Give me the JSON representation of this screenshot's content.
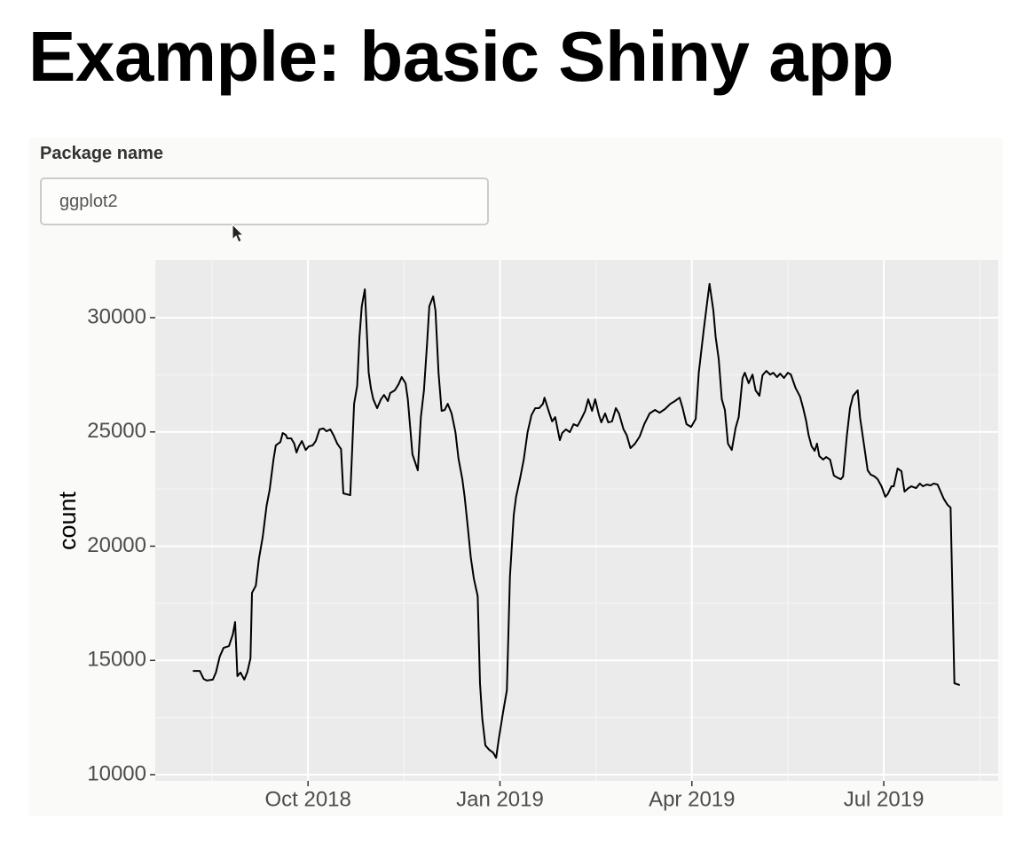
{
  "header": {
    "title": "Example: basic Shiny app"
  },
  "input": {
    "label": "Package name",
    "value": "ggplot2"
  },
  "chart_data": {
    "type": "line",
    "y_label": "count",
    "color": "#000000",
    "grid": true,
    "xlim": [
      2018.551,
      2019.649
    ],
    "ylim": [
      9728,
      32524
    ],
    "xticks": [
      {
        "value": 2018.75,
        "label": "Oct 2018"
      },
      {
        "value": 2019.0,
        "label": "Jan 2019"
      },
      {
        "value": 2019.25,
        "label": "Apr 2019"
      },
      {
        "value": 2019.5,
        "label": "Jul 2019"
      }
    ],
    "x_minor_ticks": [
      2018.625,
      2018.875,
      2019.125,
      2019.375,
      2019.625
    ],
    "yticks": [
      10000,
      15000,
      20000,
      25000,
      30000
    ],
    "y_minor_ticks": [
      12500,
      17500,
      22500,
      27500
    ],
    "x": [
      2018.6,
      2018.609,
      2018.614,
      2018.618,
      2018.626,
      2018.63,
      2018.635,
      2018.64,
      2018.647,
      2018.652,
      2018.655,
      2018.658,
      2018.662,
      2018.667,
      2018.671,
      2018.675,
      2018.677,
      2018.682,
      2018.686,
      2018.691,
      2018.696,
      2018.7,
      2018.705,
      2018.708,
      2018.714,
      2018.717,
      2018.721,
      2018.723,
      2018.728,
      2018.732,
      2018.735,
      2018.738,
      2018.742,
      2018.747,
      2018.751,
      2018.756,
      2018.76,
      2018.765,
      2018.77,
      2018.774,
      2018.779,
      2018.783,
      2018.788,
      2018.793,
      2018.796,
      2018.805,
      2018.81,
      2018.814,
      2018.817,
      2018.82,
      2018.824,
      2018.829,
      2018.832,
      2018.835,
      2018.84,
      2018.845,
      2018.849,
      2018.854,
      2018.857,
      2018.863,
      2018.868,
      2018.872,
      2018.877,
      2018.88,
      2018.886,
      2018.893,
      2018.897,
      2018.901,
      2018.905,
      2018.908,
      2018.913,
      2018.916,
      2018.92,
      2018.924,
      2018.928,
      2018.932,
      2018.937,
      2018.942,
      2018.946,
      2018.951,
      2018.954,
      2018.958,
      2018.962,
      2018.966,
      2018.971,
      2018.974,
      2018.977,
      2018.981,
      2018.986,
      2018.991,
      2018.995,
      2018.999,
      2019.004,
      2019.009,
      2019.013,
      2019.018,
      2019.021,
      2019.026,
      2019.031,
      2019.036,
      2019.041,
      2019.046,
      2019.051,
      2019.056,
      2019.058,
      2019.063,
      2019.068,
      2019.072,
      2019.078,
      2019.081,
      2019.086,
      2019.091,
      2019.096,
      2019.101,
      2019.106,
      2019.111,
      2019.115,
      2019.12,
      2019.124,
      2019.129,
      2019.132,
      2019.137,
      2019.141,
      2019.146,
      2019.151,
      2019.155,
      2019.161,
      2019.165,
      2019.17,
      2019.176,
      2019.182,
      2019.188,
      2019.195,
      2019.202,
      2019.208,
      2019.215,
      2019.222,
      2019.228,
      2019.234,
      2019.238,
      2019.243,
      2019.249,
      2019.255,
      2019.259,
      2019.265,
      2019.27,
      2019.273,
      2019.278,
      2019.281,
      2019.285,
      2019.289,
      2019.293,
      2019.297,
      2019.302,
      2019.307,
      2019.311,
      2019.316,
      2019.319,
      2019.324,
      2019.329,
      2019.333,
      2019.338,
      2019.342,
      2019.347,
      2019.352,
      2019.356,
      2019.361,
      2019.365,
      2019.37,
      2019.375,
      2019.379,
      2019.385,
      2019.391,
      2019.395,
      2019.399,
      2019.402,
      2019.406,
      2019.41,
      2019.413,
      2019.416,
      2019.421,
      2019.425,
      2019.43,
      2019.435,
      2019.439,
      2019.444,
      2019.447,
      2019.452,
      2019.456,
      2019.46,
      2019.466,
      2019.469,
      2019.474,
      2019.479,
      2019.483,
      2019.488,
      2019.492,
      2019.497,
      2019.502,
      2019.505,
      2019.51,
      2019.513,
      2019.518,
      2019.523,
      2019.527,
      2019.532,
      2019.536,
      2019.542,
      2019.547,
      2019.551,
      2019.556,
      2019.561,
      2019.565,
      2019.57,
      2019.573,
      2019.578,
      2019.583,
      2019.587,
      2019.592,
      2019.599
    ],
    "values": [
      14540,
      14540,
      14190,
      14120,
      14160,
      14470,
      15170,
      15550,
      15630,
      16140,
      16680,
      14310,
      14470,
      14160,
      14500,
      15090,
      17960,
      18270,
      19440,
      20410,
      21770,
      22470,
      23790,
      24410,
      24560,
      24950,
      24870,
      24720,
      24720,
      24490,
      24100,
      24370,
      24600,
      24210,
      24370,
      24410,
      24600,
      25110,
      25150,
      25030,
      25110,
      24870,
      24490,
      24250,
      22310,
      22230,
      26230,
      27010,
      29150,
      30500,
      31240,
      27590,
      26890,
      26430,
      26040,
      26430,
      26620,
      26350,
      26700,
      26820,
      27090,
      27400,
      27130,
      26430,
      24020,
      23320,
      25650,
      26820,
      28840,
      30500,
      30930,
      30310,
      27590,
      25920,
      25960,
      26230,
      25810,
      24990,
      23830,
      22930,
      22160,
      20870,
      19510,
      18580,
      17810,
      14000,
      12450,
      11280,
      11090,
      10970,
      10740,
      11670,
      12720,
      13690,
      18660,
      21380,
      22160,
      22930,
      23790,
      24990,
      25730,
      26040,
      26040,
      26230,
      26500,
      25960,
      25460,
      25650,
      24640,
      24950,
      25110,
      24990,
      25340,
      25260,
      25570,
      25920,
      26430,
      25920,
      26430,
      25730,
      25420,
      25810,
      25420,
      25460,
      26040,
      25810,
      25110,
      24870,
      24290,
      24490,
      24800,
      25340,
      25810,
      25960,
      25840,
      26000,
      26230,
      26350,
      26500,
      26040,
      25340,
      25220,
      25570,
      27590,
      29340,
      30700,
      31480,
      30310,
      29150,
      28180,
      26430,
      25960,
      24490,
      24210,
      25180,
      25650,
      27360,
      27590,
      27130,
      27510,
      26820,
      26580,
      27480,
      27670,
      27510,
      27590,
      27400,
      27550,
      27360,
      27590,
      27510,
      26930,
      26540,
      26040,
      25460,
      24870,
      24370,
      24170,
      24490,
      23940,
      23790,
      23900,
      23790,
      23090,
      23010,
      22930,
      23050,
      24870,
      26040,
      26580,
      26820,
      25650,
      24490,
      23320,
      23130,
      23050,
      22930,
      22620,
      22160,
      22270,
      22620,
      22620,
      23400,
      23280,
      22390,
      22540,
      22620,
      22540,
      22740,
      22620,
      22700,
      22660,
      22740,
      22700,
      22470,
      22080,
      21810,
      21690,
      14000,
      13920
    ]
  }
}
